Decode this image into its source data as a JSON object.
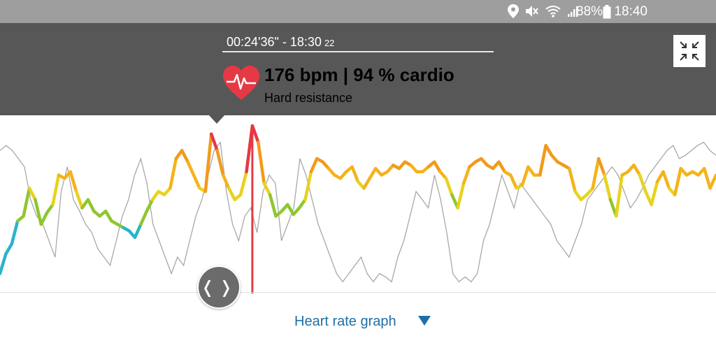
{
  "status_bar": {
    "battery": "88%",
    "time": "18:40",
    "icons": [
      "location-icon",
      "mute-icon",
      "wifi-icon",
      "signal-icon",
      "battery-icon"
    ]
  },
  "header": {
    "time_range": "00:24'36\" - 18:30",
    "time_range_sub": "22",
    "bpm_line": "176 bpm | 94 % cardio",
    "zone": "Hard resistance",
    "heart_color": "#e53945",
    "collapse_icon": "collapse-icon"
  },
  "footer": {
    "label": "Heart rate graph",
    "arrow_icon": "caret-down-icon",
    "accent": "#1f6ea6"
  },
  "chart_data": {
    "type": "line",
    "series": [
      {
        "values": [
          0.1,
          0.22,
          0.28,
          0.42,
          0.45,
          0.62,
          0.55,
          0.4,
          0.47,
          0.52,
          0.7,
          0.68,
          0.72,
          0.6,
          0.5,
          0.55,
          0.48,
          0.45,
          0.48,
          0.42,
          0.4,
          0.38,
          0.36,
          0.32,
          0.4,
          0.48,
          0.55,
          0.6,
          0.58,
          0.62,
          0.8,
          0.85,
          0.78,
          0.7,
          0.62,
          0.6,
          0.95,
          0.85,
          0.7,
          0.62,
          0.55,
          0.58,
          0.72,
          1.0,
          0.9,
          0.65,
          0.58,
          0.45,
          0.48,
          0.52,
          0.46,
          0.5,
          0.55,
          0.72,
          0.8,
          0.78,
          0.74,
          0.7,
          0.68,
          0.72,
          0.75,
          0.66,
          0.62,
          0.68,
          0.74,
          0.7,
          0.72,
          0.76,
          0.74,
          0.78,
          0.76,
          0.72,
          0.72,
          0.75,
          0.78,
          0.72,
          0.68,
          0.58,
          0.5,
          0.65,
          0.75,
          0.78,
          0.8,
          0.76,
          0.74,
          0.78,
          0.72,
          0.7,
          0.62,
          0.64,
          0.75,
          0.7,
          0.7,
          0.88,
          0.82,
          0.78,
          0.76,
          0.74,
          0.6,
          0.55,
          0.58,
          0.62,
          0.8,
          0.7,
          0.55,
          0.45,
          0.7,
          0.72,
          0.76,
          0.7,
          0.6,
          0.52,
          0.66,
          0.72,
          0.62,
          0.58,
          0.74,
          0.7,
          0.72,
          0.7,
          0.74,
          0.62,
          0.7
        ],
        "zone_colors": [
          "#2bb3cc",
          "#8fc62f",
          "#e8d21f",
          "#f5b21a",
          "#f29a1a",
          "#e53945"
        ]
      },
      {
        "values": [
          0.85,
          0.88,
          0.85,
          0.8,
          0.75,
          0.55,
          0.45,
          0.4,
          0.3,
          0.2,
          0.6,
          0.75,
          0.55,
          0.48,
          0.4,
          0.35,
          0.25,
          0.2,
          0.15,
          0.3,
          0.45,
          0.55,
          0.7,
          0.8,
          0.65,
          0.4,
          0.3,
          0.2,
          0.1,
          0.2,
          0.15,
          0.3,
          0.45,
          0.55,
          0.7,
          0.85,
          0.9,
          0.6,
          0.4,
          0.3,
          0.45,
          0.5,
          0.35,
          0.6,
          0.7,
          0.65,
          0.3,
          0.4,
          0.5,
          0.8,
          0.7,
          0.55,
          0.4,
          0.3,
          0.2,
          0.1,
          0.05,
          0.1,
          0.15,
          0.2,
          0.1,
          0.05,
          0.1,
          0.08,
          0.05,
          0.2,
          0.3,
          0.45,
          0.6,
          0.55,
          0.5,
          0.7,
          0.55,
          0.35,
          0.1,
          0.05,
          0.08,
          0.05,
          0.1,
          0.3,
          0.4,
          0.55,
          0.7,
          0.6,
          0.5,
          0.65,
          0.6,
          0.55,
          0.5,
          0.45,
          0.4,
          0.3,
          0.25,
          0.2,
          0.3,
          0.4,
          0.55,
          0.6,
          0.65,
          0.7,
          0.75,
          0.7,
          0.6,
          0.5,
          0.55,
          0.62,
          0.7,
          0.75,
          0.8,
          0.85,
          0.88,
          0.8,
          0.82,
          0.85,
          0.88,
          0.9,
          0.85,
          0.82
        ]
      }
    ],
    "ylim": [
      0,
      1
    ],
    "marker_index": 43
  }
}
